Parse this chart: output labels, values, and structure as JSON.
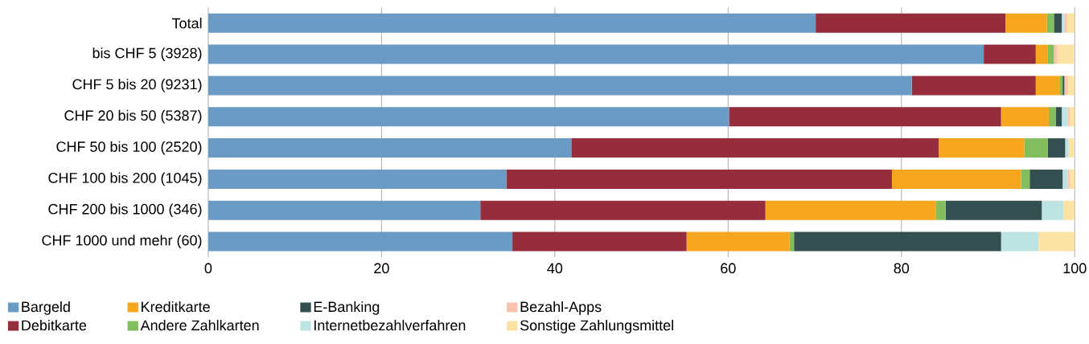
{
  "chart_data": {
    "type": "bar",
    "orientation": "horizontal",
    "stacked": true,
    "categories": [
      "Total",
      "bis CHF 5 (3928)",
      "CHF 5 bis 20 (9231)",
      "CHF 20 bis 50 (5387)",
      "CHF 50 bis 100 (2520)",
      "CHF 100 bis 200 (1045)",
      "CHF 200 bis 1000 (346)",
      "CHF 1000 und mehr (60)"
    ],
    "series": [
      {
        "name": "Bargeld",
        "color": "#6b9ac4",
        "values": [
          70.1,
          89.5,
          81.2,
          60.1,
          41.9,
          34.4,
          31.4,
          35.1
        ]
      },
      {
        "name": "Debitkarte",
        "color": "#962d3c",
        "values": [
          21.9,
          6.0,
          14.3,
          31.4,
          42.4,
          44.5,
          32.9,
          20.1
        ]
      },
      {
        "name": "Kreditkarte",
        "color": "#f7a71e",
        "values": [
          4.8,
          1.4,
          2.8,
          5.5,
          9.9,
          14.9,
          19.7,
          11.9
        ]
      },
      {
        "name": "Andere Zahlkarten",
        "color": "#82bd5e",
        "values": [
          0.8,
          0.7,
          0.3,
          0.8,
          2.7,
          1.0,
          1.1,
          0.5
        ]
      },
      {
        "name": "E-Banking",
        "color": "#344f4f",
        "values": [
          0.9,
          0,
          0.2,
          0.7,
          2.0,
          3.8,
          11.1,
          23.9
        ]
      },
      {
        "name": "Internetbezahlverfahren",
        "color": "#bde3e3",
        "values": [
          0.3,
          null,
          0,
          0.7,
          0.4,
          0.6,
          2.5,
          4.3
        ]
      },
      {
        "name": "Bezahl-Apps",
        "color": "#f9c3ad",
        "values": [
          0.3,
          0.4,
          0.4,
          0.2,
          null,
          0.2,
          0,
          0
        ]
      },
      {
        "name": "Sonstige Zahlungsmittel",
        "color": "#fde3a3",
        "values": [
          0.9,
          1.9,
          0.8,
          0.6,
          0.6,
          0.6,
          1.3,
          4.2
        ]
      }
    ],
    "xlim": [
      0,
      100
    ],
    "xticks": [
      0,
      20,
      40,
      60,
      80,
      100
    ],
    "grid": "x",
    "legend": "bottom"
  }
}
